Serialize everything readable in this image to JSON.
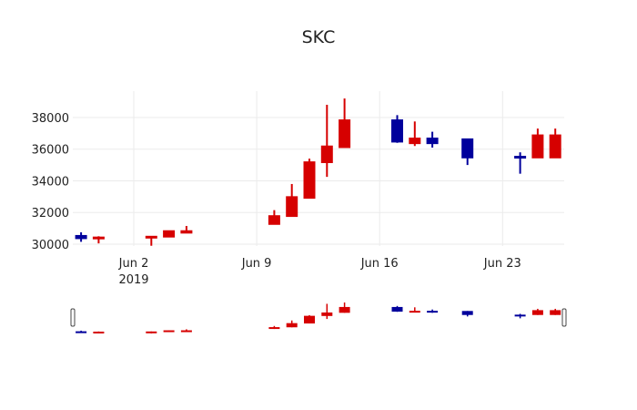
{
  "chart_data": {
    "type": "candlestick",
    "title": "SKC",
    "xlabel": "",
    "ylabel": "",
    "ylim": [
      29900,
      39200
    ],
    "yticks": [
      30000,
      32000,
      34000,
      36000,
      38000
    ],
    "xticks": [
      {
        "label": "Jun 2",
        "sublabel": "2019",
        "date": "2019-06-02"
      },
      {
        "label": "Jun 9",
        "sublabel": "",
        "date": "2019-06-09"
      },
      {
        "label": "Jun 16",
        "sublabel": "",
        "date": "2019-06-16"
      },
      {
        "label": "Jun 23",
        "sublabel": "",
        "date": "2019-06-23"
      }
    ],
    "increasing_color": "#d60000",
    "decreasing_color": "#00009c",
    "grid": true,
    "rangeslider": true,
    "series": [
      {
        "date": "2019-05-30",
        "open": 30550,
        "high": 30750,
        "low": 30150,
        "close": 30350
      },
      {
        "date": "2019-05-31",
        "open": 30350,
        "high": 30500,
        "low": 30050,
        "close": 30450
      },
      {
        "date": "2019-06-03",
        "open": 30400,
        "high": 30500,
        "low": 29900,
        "close": 30500
      },
      {
        "date": "2019-06-04",
        "open": 30450,
        "high": 30850,
        "low": 30450,
        "close": 30850
      },
      {
        "date": "2019-06-05",
        "open": 30700,
        "high": 31150,
        "low": 30700,
        "close": 30850
      },
      {
        "date": "2019-06-10",
        "open": 31250,
        "high": 32150,
        "low": 31250,
        "close": 31800
      },
      {
        "date": "2019-06-11",
        "open": 31750,
        "high": 33800,
        "low": 31750,
        "close": 33000
      },
      {
        "date": "2019-06-12",
        "open": 32900,
        "high": 35400,
        "low": 32900,
        "close": 35200
      },
      {
        "date": "2019-06-13",
        "open": 35150,
        "high": 38800,
        "low": 34250,
        "close": 36200
      },
      {
        "date": "2019-06-14",
        "open": 36100,
        "high": 39200,
        "low": 36100,
        "close": 37850
      },
      {
        "date": "2019-06-17",
        "open": 37850,
        "high": 38150,
        "low": 36400,
        "close": 36450
      },
      {
        "date": "2019-06-18",
        "open": 36350,
        "high": 37750,
        "low": 36200,
        "close": 36700
      },
      {
        "date": "2019-06-19",
        "open": 36700,
        "high": 37100,
        "low": 36100,
        "close": 36350
      },
      {
        "date": "2019-06-21",
        "open": 36650,
        "high": 36650,
        "low": 35000,
        "close": 35450
      },
      {
        "date": "2019-06-24",
        "open": 35550,
        "high": 35800,
        "low": 34450,
        "close": 35450
      },
      {
        "date": "2019-06-25",
        "open": 35450,
        "high": 37300,
        "low": 35450,
        "close": 36900
      },
      {
        "date": "2019-06-26",
        "open": 35450,
        "high": 37300,
        "low": 35450,
        "close": 36900
      }
    ]
  }
}
